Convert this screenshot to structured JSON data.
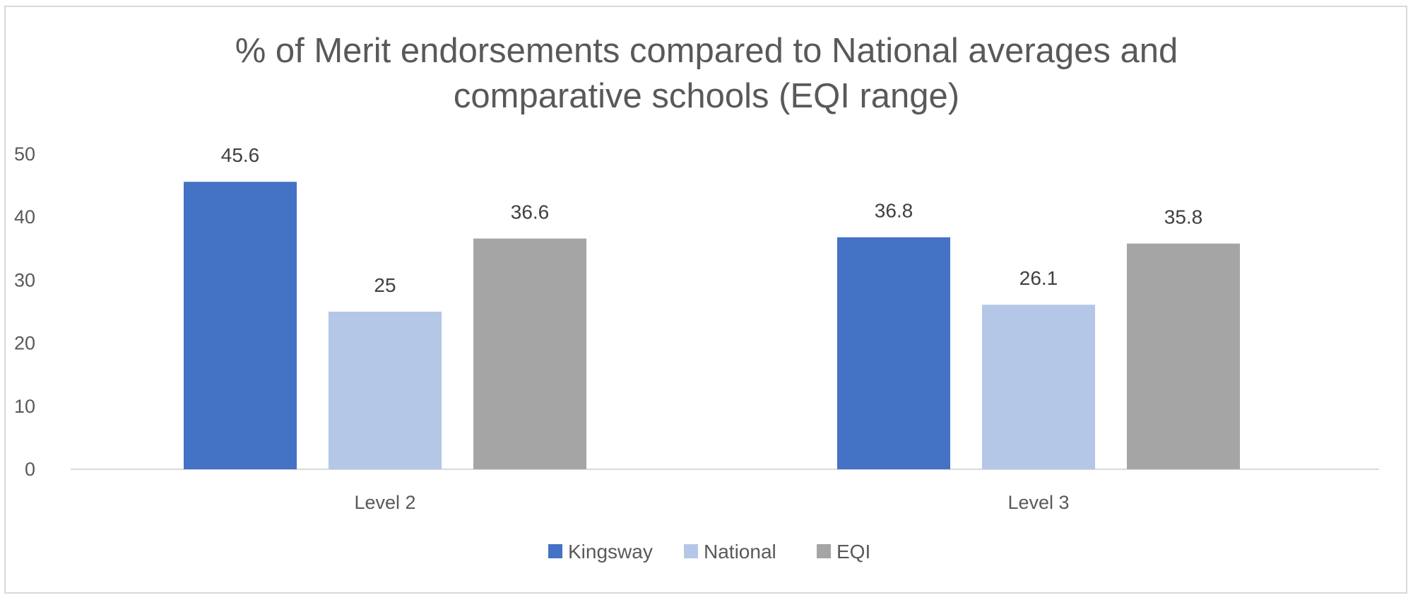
{
  "chart_data": {
    "type": "bar",
    "title_lines": [
      "% of Merit endorsements compared to National averages and",
      "comparative schools (EQI range)"
    ],
    "categories": [
      "Level 2",
      "Level 3"
    ],
    "series": [
      {
        "name": "Kingsway",
        "values": [
          45.6,
          36.8
        ],
        "color": "#4472c4"
      },
      {
        "name": "National",
        "values": [
          25,
          26.1
        ],
        "color": "#b4c7e7"
      },
      {
        "name": "EQI",
        "values": [
          36.6,
          35.8
        ],
        "color": "#a5a5a5"
      }
    ],
    "data_labels": [
      [
        "45.6",
        "36.8"
      ],
      [
        "25",
        "26.1"
      ],
      [
        "36.6",
        "35.8"
      ]
    ],
    "ylim": [
      0,
      50
    ],
    "yticks": [
      "0",
      "10",
      "20",
      "30",
      "40",
      "50"
    ],
    "xlabel": "",
    "ylabel": "",
    "grid": false,
    "legend_position": "bottom"
  }
}
